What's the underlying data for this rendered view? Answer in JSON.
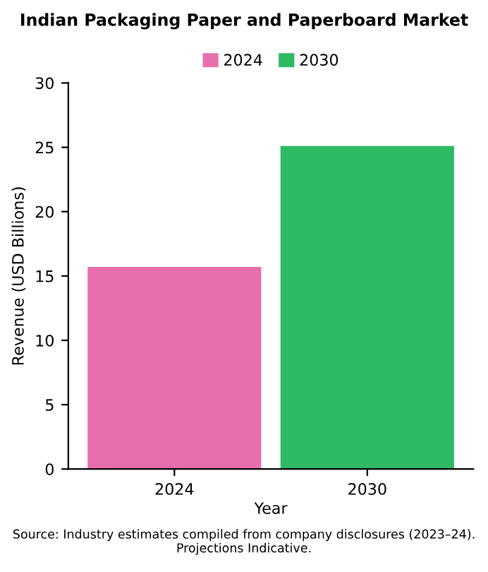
{
  "chart_data": {
    "type": "bar",
    "title": "Indian Packaging Paper and Paperboard Market",
    "categories": [
      "2024",
      "2030"
    ],
    "series": [
      {
        "name": "2024",
        "color": "#e86fad",
        "values": [
          15.7,
          null
        ]
      },
      {
        "name": "2030",
        "color": "#2dba63",
        "values": [
          null,
          25.1
        ]
      }
    ],
    "stacked": true,
    "xlabel": "Year",
    "ylabel": "Revenue (USD Billions)",
    "ylim": [
      0,
      30
    ],
    "yticks": [
      0,
      5,
      10,
      15,
      20,
      25,
      30
    ],
    "legend": "top",
    "annotations": [
      "Source: Industry estimates compiled from company disclosures (2023–24). Projections Indicative."
    ]
  }
}
